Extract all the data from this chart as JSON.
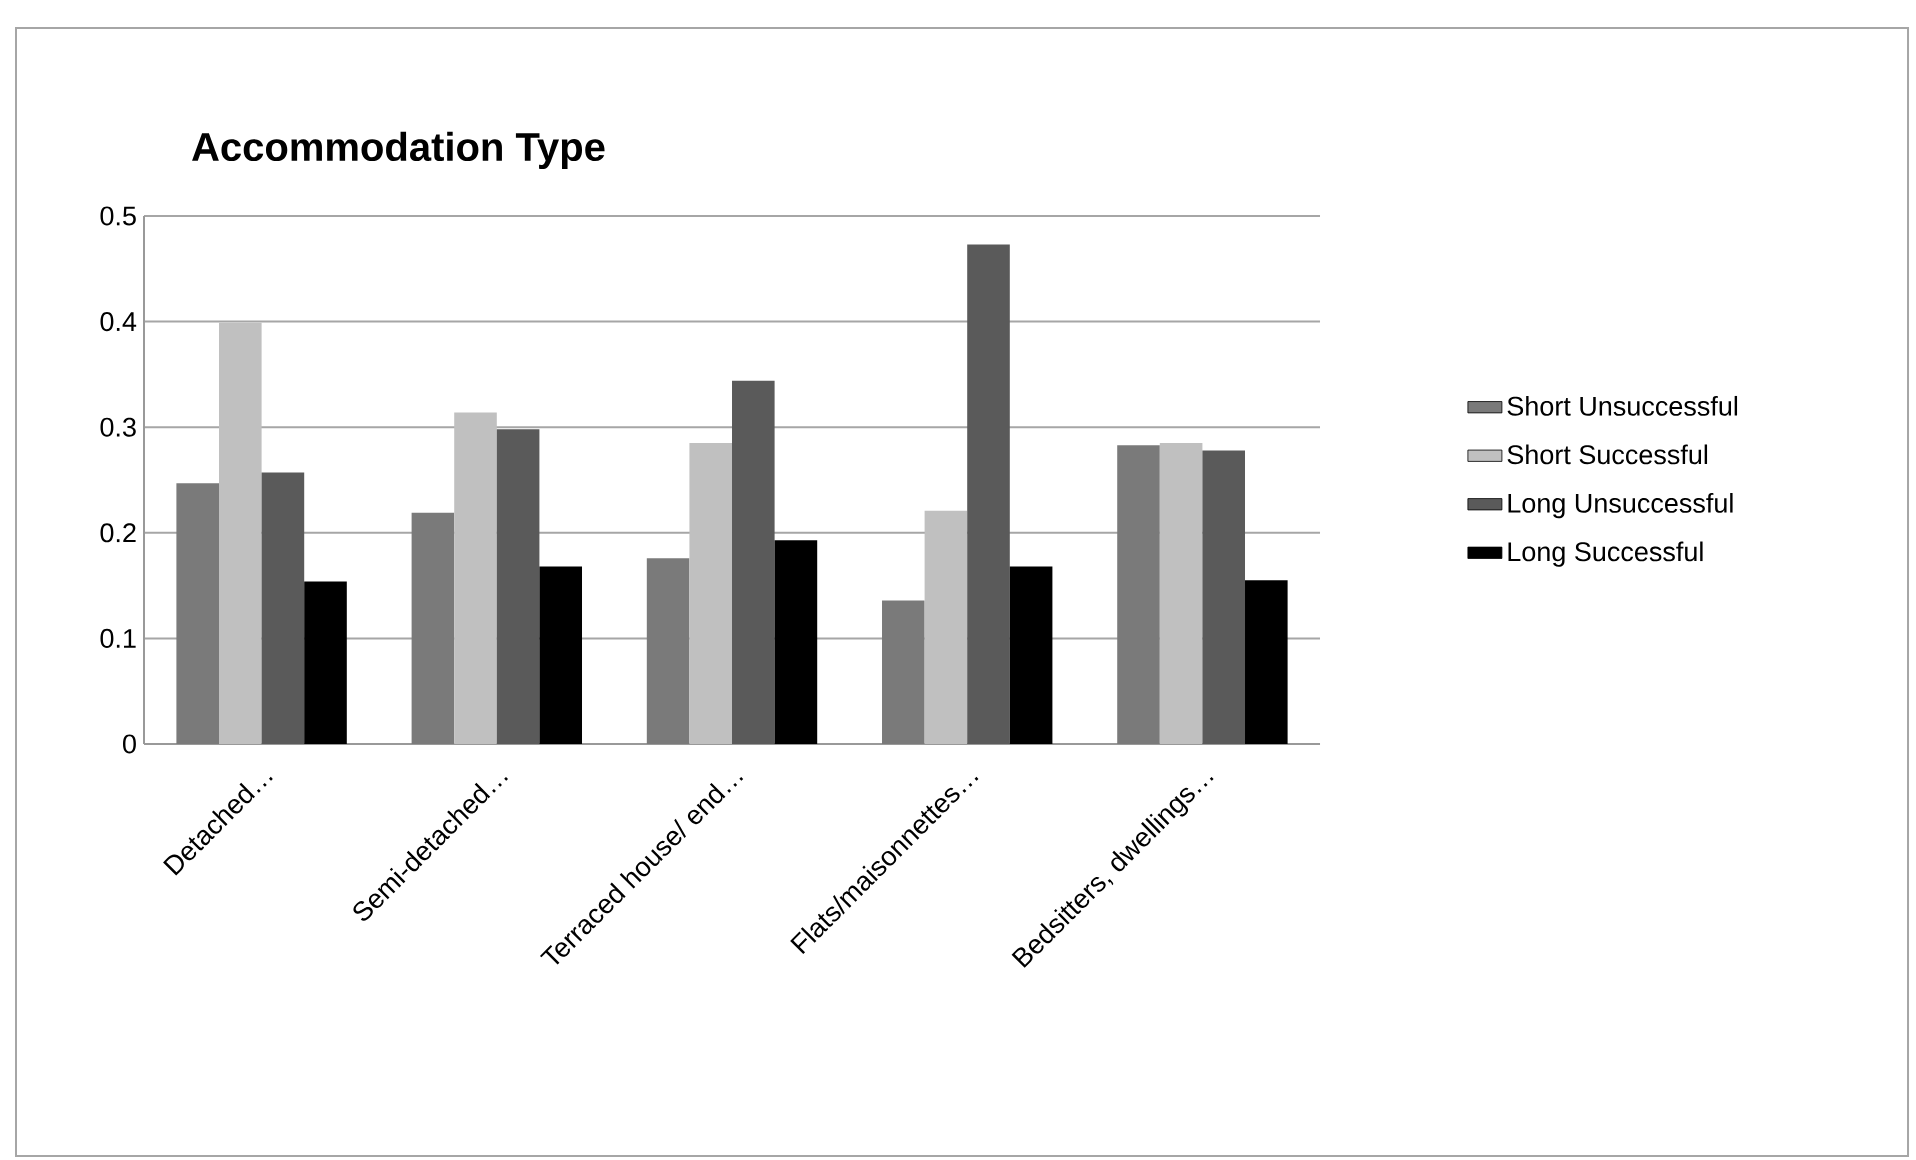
{
  "chart_data": {
    "type": "bar",
    "title": "Accommodation Type",
    "categories": [
      "Detached…",
      "Semi-detached…",
      "Terraced house/ end…",
      "Flats/maisonnettes…",
      "Bedsitters, dwellings…"
    ],
    "series": [
      {
        "name": "Short Unsuccessful",
        "color": "#7a7a7a",
        "values": [
          0.247,
          0.219,
          0.176,
          0.136,
          0.283
        ]
      },
      {
        "name": "Short Successful",
        "color": "#c0c0c0",
        "values": [
          0.399,
          0.314,
          0.285,
          0.221,
          0.285
        ]
      },
      {
        "name": "Long Unsuccessful",
        "color": "#5a5a5a",
        "values": [
          0.257,
          0.298,
          0.344,
          0.473,
          0.278
        ]
      },
      {
        "name": "Long Successful",
        "color": "#000000",
        "values": [
          0.154,
          0.168,
          0.193,
          0.168,
          0.155
        ]
      }
    ],
    "ylim": [
      0,
      0.5
    ],
    "yticks": [
      0,
      0.1,
      0.2,
      0.3,
      0.4,
      0.5
    ],
    "grid": "y",
    "legend": "right"
  }
}
